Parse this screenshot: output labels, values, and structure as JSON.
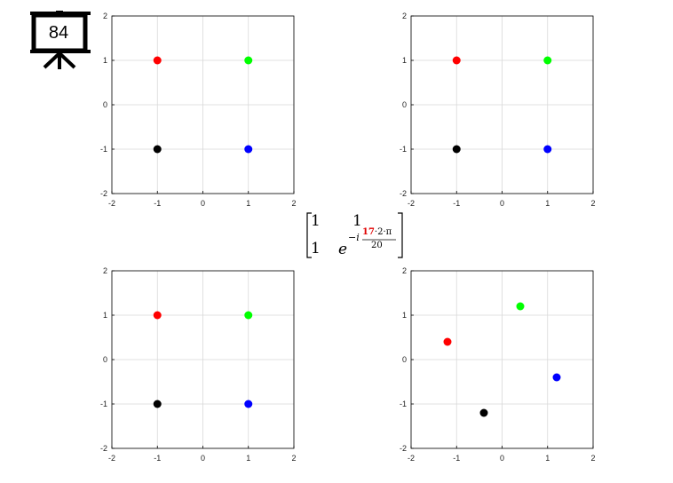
{
  "slide_number": "84",
  "matrix": {
    "r1c1": "1",
    "r1c2": "1",
    "r2c1": "1",
    "base": "e",
    "exponent_prefix": "−i",
    "frac_highlight": "17",
    "frac_rest": "·2·π",
    "frac_denominator": "20",
    "highlight_color": "#e00000"
  },
  "chart_data": [
    {
      "type": "scatter",
      "xlim": [
        -2,
        2
      ],
      "ylim": [
        -2,
        2
      ],
      "xticks": [
        "-2",
        "-1",
        "0",
        "1",
        "2"
      ],
      "yticks": [
        "2",
        "1",
        "0",
        "-1",
        "-2"
      ],
      "grid": true,
      "points": [
        {
          "x": -1,
          "y": 1,
          "color": "#ff0000"
        },
        {
          "x": 1,
          "y": 1,
          "color": "#00ff00"
        },
        {
          "x": -1,
          "y": -1,
          "color": "#000000"
        },
        {
          "x": 1,
          "y": -1,
          "color": "#0000ff"
        }
      ]
    },
    {
      "type": "scatter",
      "xlim": [
        -2,
        2
      ],
      "ylim": [
        -2,
        2
      ],
      "xticks": [
        "-2",
        "-1",
        "0",
        "1",
        "2"
      ],
      "yticks": [
        "2",
        "1",
        "0",
        "-1",
        "-2"
      ],
      "grid": true,
      "points": [
        {
          "x": -1,
          "y": 1,
          "color": "#ff0000"
        },
        {
          "x": 1,
          "y": 1,
          "color": "#00ff00"
        },
        {
          "x": -1,
          "y": -1,
          "color": "#000000"
        },
        {
          "x": 1,
          "y": -1,
          "color": "#0000ff"
        }
      ]
    },
    {
      "type": "scatter",
      "xlim": [
        -2,
        2
      ],
      "ylim": [
        -2,
        2
      ],
      "xticks": [
        "-2",
        "-1",
        "0",
        "1",
        "2"
      ],
      "yticks": [
        "2",
        "1",
        "0",
        "-1",
        "-2"
      ],
      "grid": true,
      "points": [
        {
          "x": -1,
          "y": 1,
          "color": "#ff0000"
        },
        {
          "x": 1,
          "y": 1,
          "color": "#00ff00"
        },
        {
          "x": -1,
          "y": -1,
          "color": "#000000"
        },
        {
          "x": 1,
          "y": -1,
          "color": "#0000ff"
        }
      ]
    },
    {
      "type": "scatter",
      "xlim": [
        -2,
        2
      ],
      "ylim": [
        -2,
        2
      ],
      "xticks": [
        "-2",
        "-1",
        "0",
        "1",
        "2"
      ],
      "yticks": [
        "2",
        "1",
        "0",
        "-1",
        "-2"
      ],
      "grid": true,
      "points": [
        {
          "x": -1.2,
          "y": 0.4,
          "color": "#ff0000"
        },
        {
          "x": 0.4,
          "y": 1.2,
          "color": "#00ff00"
        },
        {
          "x": -0.4,
          "y": -1.2,
          "color": "#000000"
        },
        {
          "x": 1.2,
          "y": -0.4,
          "color": "#0000ff"
        }
      ]
    }
  ]
}
